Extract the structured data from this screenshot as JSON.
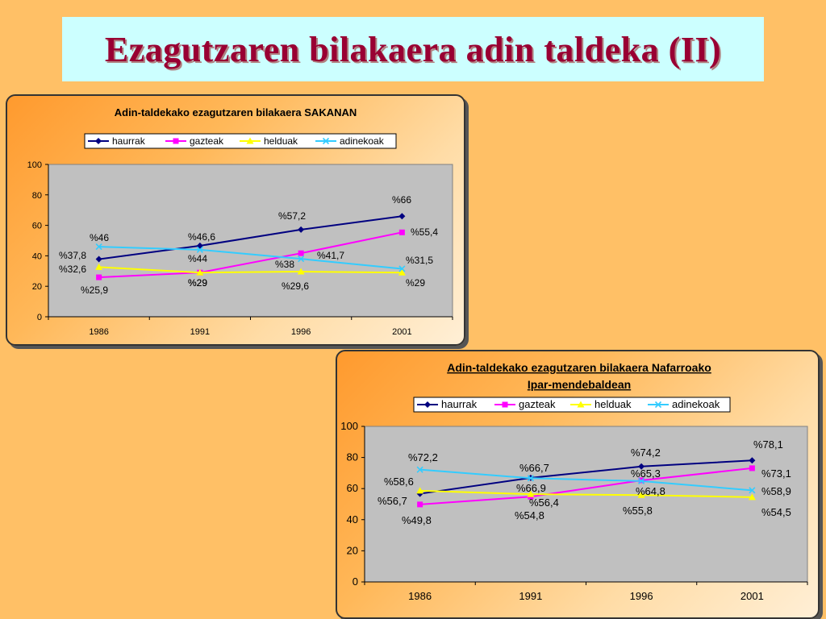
{
  "page": {
    "title": "Ezagutzaren bilakaera adin taldeka (II)"
  },
  "colors": {
    "haurrak": "#000080",
    "gazteak": "#FF00FF",
    "helduak": "#FFFF00",
    "adinekoak": "#33CCFF",
    "plot_bg": "#C0C0C0"
  },
  "chart_data": [
    {
      "type": "line",
      "title": "Adin-taldekako ezagutzaren bilakaera SAKANAN",
      "x": [
        "1986",
        "1991",
        "1996",
        "2001"
      ],
      "ylim": [
        0,
        100
      ],
      "yticks": [
        "0",
        "20",
        "40",
        "60",
        "80",
        "100"
      ],
      "legend_position": "top",
      "grid": true,
      "series": [
        {
          "name": "haurrak",
          "values": [
            37.8,
            46.6,
            57.2,
            66
          ],
          "labels": [
            "%37,8",
            "%46,6",
            "%57,2",
            "%66"
          ]
        },
        {
          "name": "gazteak",
          "values": [
            25.9,
            29,
            41.7,
            55.4
          ],
          "labels": [
            "%25,9",
            "%29",
            "%41,7",
            "%55,4"
          ]
        },
        {
          "name": "helduak",
          "values": [
            32.6,
            29,
            29.6,
            29
          ],
          "labels": [
            "%32,6",
            "%29",
            "%29,6",
            "%29"
          ]
        },
        {
          "name": "adinekoak",
          "values": [
            46,
            44,
            38,
            31.5
          ],
          "labels": [
            "%46",
            "%44",
            "%38",
            "%31,5"
          ]
        }
      ]
    },
    {
      "type": "line",
      "title": "Adin-taldekako ezagutzaren bilakaera Nafarroako Ipar-mendebaldean",
      "title_lines": [
        "Adin-taldekako ezagutzaren bilakaera Nafarroako",
        "Ipar-mendebaldean"
      ],
      "x": [
        "1986",
        "1991",
        "1996",
        "2001"
      ],
      "ylim": [
        0,
        100
      ],
      "yticks": [
        "0",
        "20",
        "40",
        "60",
        "80",
        "100"
      ],
      "legend_position": "top",
      "grid": true,
      "series": [
        {
          "name": "haurrak",
          "values": [
            56.7,
            66.9,
            74.2,
            78.1
          ],
          "labels": [
            "%56,7",
            "%66,9",
            "%74,2",
            "%78,1"
          ]
        },
        {
          "name": "gazteak",
          "values": [
            49.8,
            54.8,
            65.3,
            73.1
          ],
          "labels": [
            "%49,8",
            "%54,8",
            "%65,3",
            "%73,1"
          ]
        },
        {
          "name": "helduak",
          "values": [
            58.6,
            56.4,
            55.8,
            54.5
          ],
          "labels": [
            "%58,6",
            "%56,4",
            "%55,8",
            "%54,5"
          ]
        },
        {
          "name": "adinekoak",
          "values": [
            72.2,
            66.7,
            64.8,
            58.9
          ],
          "labels": [
            "%72,2",
            "%66,7",
            "%64,8",
            "%58,9"
          ]
        }
      ]
    }
  ]
}
